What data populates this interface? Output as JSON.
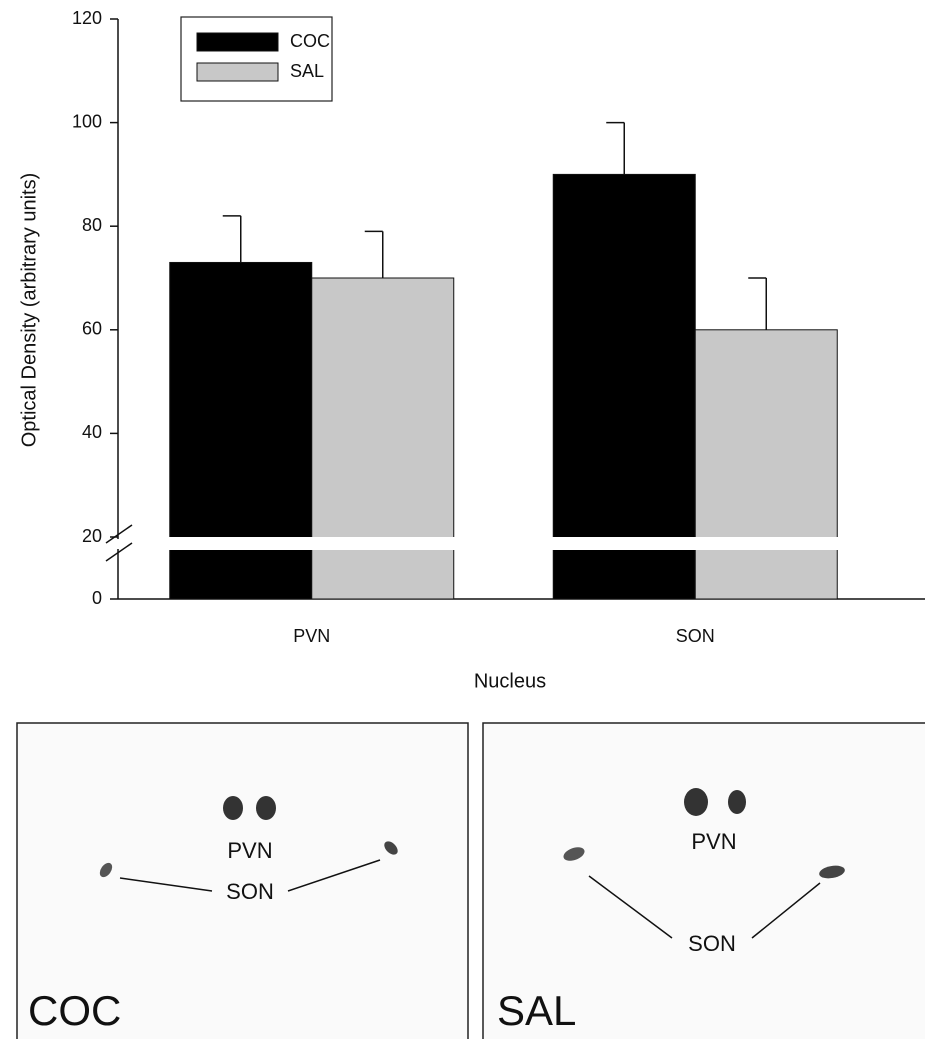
{
  "chart_data": {
    "type": "bar",
    "y_label": "Optical Density (arbitrary units)",
    "x_label": "Nucleus",
    "categories": [
      "PVN",
      "SON"
    ],
    "series": [
      {
        "name": "COC",
        "color": "#000000",
        "values": [
          73,
          90
        ],
        "errors": [
          9,
          10
        ]
      },
      {
        "name": "SAL",
        "color": "#c8c8c8",
        "values": [
          70,
          60
        ],
        "errors": [
          9,
          10
        ]
      }
    ],
    "ylim": [
      0,
      120
    ],
    "yticks": [
      0,
      20,
      40,
      60,
      80,
      100,
      120
    ],
    "axis_break": true
  },
  "panels": [
    {
      "label": "COC",
      "regions": [
        "PVN",
        "SON"
      ]
    },
    {
      "label": "SAL",
      "regions": [
        "PVN",
        "SON"
      ]
    }
  ]
}
